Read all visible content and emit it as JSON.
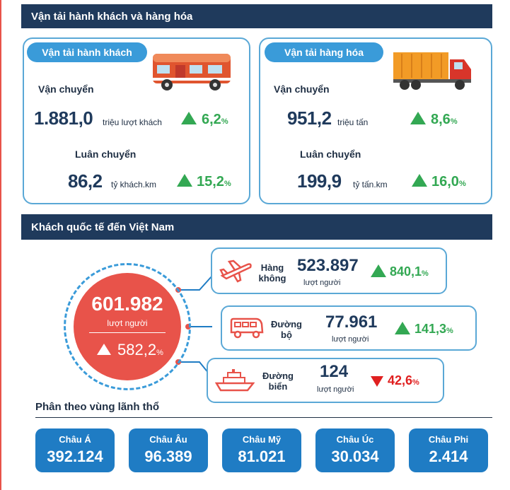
{
  "sections": {
    "transport_title": "Vận tải hành khách và hàng hóa",
    "intl_title": "Khách quốc tế đến Việt Nam",
    "region_title": "Phân theo vùng lãnh thổ"
  },
  "passenger": {
    "pill": "Vận tải hành khách",
    "carried_label": "Vận chuyển",
    "carried_value": "1.881,0",
    "carried_unit": "triệu lượt khách",
    "carried_growth": "6,2",
    "rotation_label": "Luân chuyển",
    "rotation_value": "86,2",
    "rotation_unit": "tỷ khách.km",
    "rotation_growth": "15,2"
  },
  "freight": {
    "pill": "Vận tải hàng hóa",
    "carried_label": "Vận chuyển",
    "carried_value": "951,2",
    "carried_unit": "triệu tấn",
    "carried_growth": "8,6",
    "rotation_label": "Luân chuyển",
    "rotation_value": "199,9",
    "rotation_unit": "tỷ tấn.km",
    "rotation_growth": "16,0"
  },
  "percent_sign": "%",
  "intl": {
    "total": "601.982",
    "total_unit": "lượt người",
    "total_growth": "582,2",
    "air": {
      "line1": "Hàng",
      "line2": "không",
      "value": "523.897",
      "unit": "lượt người",
      "growth": "840,1"
    },
    "road": {
      "line1": "Đường",
      "line2": "bộ",
      "value": "77.961",
      "unit": "lượt người",
      "growth": "141,3"
    },
    "sea": {
      "line1": "Đường",
      "line2": "biển",
      "value": "124",
      "unit": "lượt người",
      "growth": "42,6"
    }
  },
  "regions": [
    {
      "name": "Châu Á",
      "value": "392.124"
    },
    {
      "name": "Châu Âu",
      "value": "96.389"
    },
    {
      "name": "Châu Mỹ",
      "value": "81.021"
    },
    {
      "name": "Châu Úc",
      "value": "30.034"
    },
    {
      "name": "Châu Phi",
      "value": "2.414"
    }
  ],
  "icons": [
    "rv-bus-icon",
    "truck-icon",
    "airplane-icon",
    "van-icon",
    "ship-icon"
  ],
  "colors": {
    "navy": "#1f3a5c",
    "blue": "#1f7cc4",
    "accent": "#e8534a",
    "green": "#33a853",
    "red": "#e02020"
  }
}
